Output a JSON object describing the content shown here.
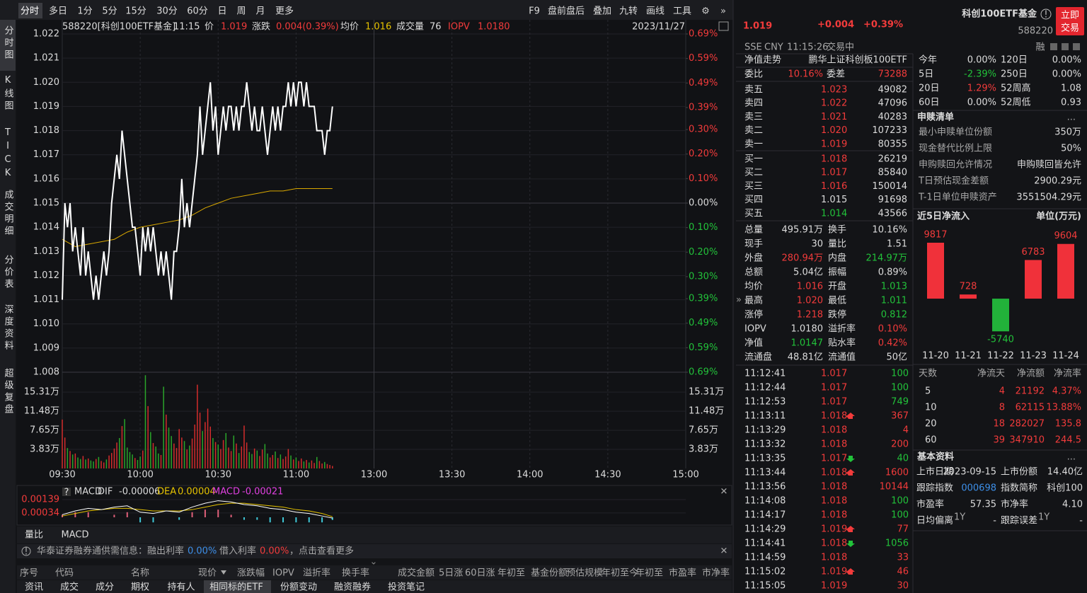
{
  "toolbar": {
    "tabs": [
      "分时",
      "多日",
      "1分",
      "5分",
      "15分",
      "30分",
      "60分",
      "日",
      "周",
      "月",
      "更多"
    ],
    "tools": [
      "F9",
      "盘前盘后",
      "叠加",
      "九转",
      "画线",
      "工具"
    ]
  },
  "side_tabs": [
    "分时图",
    "K线图",
    "TICK",
    "成交明细",
    "分价表",
    "深度资料",
    "超级复盘"
  ],
  "chart": {
    "type": "line",
    "header": [
      {
        "t": "588220[科创100ETF基金]",
        "c": "white"
      },
      {
        "t": "11:15",
        "c": "white"
      },
      {
        "t": "价",
        "c": "white"
      },
      {
        "t": "1.019",
        "c": "red"
      },
      {
        "t": "涨跌",
        "c": "white"
      },
      {
        "t": "0.004(0.39%)",
        "c": "red"
      },
      {
        "t": "均价",
        "c": "white"
      },
      {
        "t": "1.016",
        "c": "yellow"
      },
      {
        "t": "成交量",
        "c": "white"
      },
      {
        "t": "76",
        "c": "white"
      },
      {
        "t": "IOPV",
        "c": "red"
      },
      {
        "t": "1.0180",
        "c": "red"
      }
    ],
    "date": "2023/11/27",
    "xlim": [
      0,
      240
    ],
    "xticks": [
      {
        "value": 0,
        "label": "09:30"
      },
      {
        "value": 30,
        "label": "10:00"
      },
      {
        "value": 60,
        "label": "10:30"
      },
      {
        "value": 90,
        "label": "11:00"
      },
      {
        "value": 120,
        "label": "13:00"
      },
      {
        "value": 150,
        "label": "13:30"
      },
      {
        "value": 180,
        "label": "14:00"
      },
      {
        "value": 210,
        "label": "14:30"
      },
      {
        "value": 240,
        "label": "15:00"
      }
    ],
    "ylim": [
      1.008,
      1.022
    ],
    "yticks": [
      {
        "value": 1.022,
        "label": "1.022"
      },
      {
        "value": 1.021,
        "label": "1.021"
      },
      {
        "value": 1.02,
        "label": "1.020"
      },
      {
        "value": 1.019,
        "label": "1.019"
      },
      {
        "value": 1.018,
        "label": "1.018"
      },
      {
        "value": 1.017,
        "label": "1.017"
      },
      {
        "value": 1.016,
        "label": "1.016"
      },
      {
        "value": 1.015,
        "label": "1.015"
      },
      {
        "value": 1.014,
        "label": "1.014"
      },
      {
        "value": 1.013,
        "label": "1.013"
      },
      {
        "value": 1.012,
        "label": "1.012"
      },
      {
        "value": 1.011,
        "label": "1.011"
      },
      {
        "value": 1.01,
        "label": "1.010"
      },
      {
        "value": 1.009,
        "label": "1.009"
      },
      {
        "value": 1.008,
        "label": "1.008"
      }
    ],
    "y2lim": [
      -0.69,
      0.69
    ],
    "y2ticks": [
      {
        "value": 0.69,
        "label": "0.69%"
      },
      {
        "value": 0.59,
        "label": "0.59%"
      },
      {
        "value": 0.49,
        "label": "0.49%"
      },
      {
        "value": 0.39,
        "label": "0.39%"
      },
      {
        "value": 0.3,
        "label": "0.30%"
      },
      {
        "value": 0.2,
        "label": "0.20%"
      },
      {
        "value": 0.1,
        "label": "0.10%"
      },
      {
        "value": 0,
        "label": "0.00%"
      },
      {
        "value": -0.1,
        "label": "0.10%"
      },
      {
        "value": -0.2,
        "label": "0.20%"
      },
      {
        "value": -0.3,
        "label": "0.30%"
      },
      {
        "value": -0.39,
        "label": "0.39%"
      },
      {
        "value": -0.49,
        "label": "0.49%"
      },
      {
        "value": -0.59,
        "label": "0.59%"
      },
      {
        "value": -0.69,
        "label": "0.69%"
      }
    ],
    "minutes": [
      0,
      1,
      2,
      3,
      4,
      5,
      6,
      7,
      8,
      9,
      10,
      11,
      12,
      13,
      14,
      15,
      16,
      17,
      18,
      19,
      20,
      21,
      22,
      23,
      24,
      25,
      26,
      27,
      28,
      29,
      30,
      31,
      32,
      33,
      34,
      35,
      36,
      37,
      38,
      39,
      40,
      41,
      42,
      43,
      44,
      45,
      46,
      47,
      48,
      49,
      50,
      51,
      52,
      53,
      54,
      55,
      56,
      57,
      58,
      59,
      60,
      61,
      62,
      63,
      64,
      65,
      66,
      67,
      68,
      69,
      70,
      71,
      72,
      73,
      74,
      75,
      76,
      77,
      78,
      79,
      80,
      81,
      82,
      83,
      84,
      85,
      86,
      87,
      88,
      89,
      90,
      91,
      92,
      93,
      94,
      95,
      96,
      97,
      98,
      99,
      100,
      101,
      102,
      103,
      104
    ],
    "price": {
      "color": "#ffffff",
      "values": [
        1.011,
        1.015,
        1.014,
        1.015,
        1.013,
        1.014,
        1.013,
        1.012,
        1.014,
        1.012,
        1.013,
        1.012,
        1.011,
        1.012,
        1.011,
        1.012,
        1.013,
        1.012,
        1.013,
        1.015,
        1.016,
        1.017,
        1.016,
        1.018,
        1.017,
        1.016,
        1.015,
        1.014,
        1.014,
        1.013,
        1.012,
        1.014,
        1.013,
        1.014,
        1.013,
        1.014,
        1.013,
        1.012,
        1.013,
        1.012,
        1.013,
        1.012,
        1.011,
        1.013,
        1.013,
        1.014,
        1.016,
        1.014,
        1.015,
        1.014,
        1.015,
        1.016,
        1.017,
        1.019,
        1.017,
        1.018,
        1.019,
        1.02,
        1.018,
        1.019,
        1.017,
        1.018,
        1.019,
        1.018,
        1.019,
        1.019,
        1.018,
        1.019,
        1.018,
        1.019,
        1.019,
        1.02,
        1.019,
        1.018,
        1.019,
        1.018,
        1.018,
        1.019,
        1.018,
        1.017,
        1.018,
        1.019,
        1.018,
        1.019,
        1.018,
        1.019,
        1.019,
        1.02,
        1.019,
        1.02,
        1.019,
        1.02,
        1.02,
        1.019,
        1.02,
        1.019,
        1.019,
        1.019,
        1.018,
        1.018,
        1.018,
        1.017,
        1.018,
        1.018,
        1.019
      ]
    },
    "avg": {
      "color": "#d9a800",
      "x": [
        0,
        5,
        10,
        15,
        20,
        25,
        30,
        35,
        40,
        45,
        50,
        55,
        60,
        65,
        70,
        75,
        80,
        85,
        90,
        95,
        100,
        104
      ],
      "values": [
        1.0135,
        1.0132,
        1.0133,
        1.0134,
        1.0135,
        1.0138,
        1.014,
        1.0141,
        1.0142,
        1.0143,
        1.0145,
        1.0148,
        1.015,
        1.0152,
        1.0153,
        1.0154,
        1.0155,
        1.0155,
        1.0156,
        1.0156,
        1.0156,
        1.0156
      ]
    },
    "volume": {
      "type": "bar",
      "up_color": "#d42c2c",
      "down_color": "#2aa52a",
      "ylim": [
        0,
        19.3
      ],
      "yticks": [
        {
          "value": 15.31,
          "label": "15.31万"
        },
        {
          "value": 11.48,
          "label": "11.48万"
        },
        {
          "value": 7.65,
          "label": "7.65万"
        },
        {
          "value": 3.83,
          "label": "3.83万"
        }
      ],
      "values": [
        9.8,
        6.2,
        4.1,
        3.5,
        2.8,
        3.0,
        2.2,
        1.9,
        2.5,
        1.8,
        2.0,
        1.6,
        1.4,
        1.9,
        2.3,
        1.5,
        1.2,
        1.8,
        2.6,
        3.1,
        4.0,
        5.2,
        6.1,
        8.5,
        9.9,
        4.2,
        3.3,
        2.8,
        2.1,
        1.7,
        2.4,
        3.6,
        18.7,
        12.5,
        7.3,
        5.1,
        4.4,
        3.0,
        2.7,
        16.4,
        10.8,
        8.2,
        6.5,
        5.0,
        4.1,
        7.9,
        6.2,
        5.5,
        3.8,
        4.6,
        6.0,
        8.8,
        16.8,
        11.2,
        7.5,
        9.3,
        12.0,
        8.4,
        6.1,
        5.3,
        4.8,
        3.9,
        5.7,
        7.1,
        4.2,
        3.5,
        6.6,
        5.0,
        3.1,
        4.4,
        8.6,
        5.2,
        3.3,
        2.9,
        4.0,
        3.6,
        2.5,
        3.8,
        4.9,
        3.0,
        2.2,
        2.7,
        3.4,
        2.1,
        2.8,
        1.9,
        2.4,
        3.9,
        2.6,
        1.8,
        2.2,
        1.5,
        2.0,
        1.4,
        1.7,
        1.2,
        1.6,
        1.1,
        2.3,
        1.5,
        1.0,
        1.3,
        0.9,
        0.7,
        0.5
      ]
    }
  },
  "macd": {
    "type": "line",
    "header": [
      {
        "t": "MACD",
        "c": "white"
      },
      {
        "t": "DIF",
        "c": "white"
      },
      {
        "t": "-0.00006",
        "c": "white"
      },
      {
        "t": "DEA",
        "c": "yellow"
      },
      {
        "t": "0.00004",
        "c": "yellow"
      },
      {
        "t": "MACD",
        "c": "magenta"
      },
      {
        "t": "-0.00021",
        "c": "magenta"
      }
    ],
    "ylim": [
      -0.0005,
      0.00172
    ],
    "yticks": [
      0.00139,
      0.00034
    ],
    "x": [
      0,
      5,
      10,
      15,
      20,
      25,
      30,
      35,
      40,
      45,
      50,
      55,
      60,
      65,
      70,
      75,
      80,
      85,
      90,
      95,
      100,
      104
    ],
    "dif": {
      "color": "#ffffff",
      "values": [
        0.0002,
        0.0005,
        0.0007,
        0.0006,
        0.0008,
        0.0009,
        0.0004,
        0.0003,
        0.0005,
        0.0004,
        0.0008,
        0.0011,
        0.0013,
        0.0012,
        0.001,
        0.0009,
        0.0007,
        0.0006,
        0.0004,
        0.0003,
        0.0001,
        -6e-05
      ]
    },
    "dea": {
      "color": "#e5c200",
      "values": [
        0.0001,
        0.0003,
        0.0005,
        0.0006,
        0.0007,
        0.0007,
        0.0006,
        0.0005,
        0.0005,
        0.0005,
        0.0006,
        0.0008,
        0.001,
        0.0011,
        0.0011,
        0.001,
        0.0009,
        0.0008,
        0.0006,
        0.0005,
        0.0003,
        4e-05
      ]
    },
    "bars": {
      "up_color": "#e0607a",
      "down_color": "#3fc8d8",
      "values": [
        0.0002,
        0.0004,
        0.0004,
        0,
        0.0002,
        0.0004,
        -0.0004,
        -0.0004,
        0,
        -0.0002,
        0.0004,
        0.0006,
        0.0006,
        0.0002,
        -0.0002,
        -0.0002,
        -0.0004,
        -0.0004,
        -0.0004,
        -0.0004,
        -0.0004,
        -0.00021
      ]
    }
  },
  "indicator_tabs": [
    "量比",
    "MACD"
  ],
  "notice": [
    {
      "t": "华泰证券融券通供需信息：融出利率",
      "c": "gray"
    },
    {
      "t": "0.00%",
      "c": "blue"
    },
    {
      "t": "借入利率",
      "c": "gray"
    },
    {
      "t": "0.00%",
      "c": "red"
    },
    {
      "t": "，点击查看更多",
      "c": "gray"
    }
  ],
  "table_header": [
    "序号",
    "代码",
    "名称",
    "现价",
    "涨跌幅",
    "IOPV",
    "溢折率",
    "换手率",
    "成交金额",
    "5日涨",
    "60日涨",
    "年初至",
    "基金份额",
    "预估规模",
    "年初至今",
    "年初至",
    "市盈率",
    "市净率"
  ],
  "bottom_tabs": [
    "资讯",
    "成交",
    "成分",
    "期权",
    "持有人",
    "相同标的ETF",
    "份额变动",
    "融资融券",
    "投资笔记"
  ],
  "quote": {
    "price": "1.019",
    "change": "+0.004",
    "pct": "+0.39%",
    "exchange": "SSE",
    "currency": "CNY",
    "time": "11:15:26",
    "status": "交易中",
    "nav_tab": "净值走势",
    "fund_full": "鹏华上证科创板100ETF",
    "wb_label": "委比",
    "wb": "10.16%",
    "wc_label": "委差",
    "wc": "73288"
  },
  "book": [
    {
      "label": "卖五",
      "price": "1.023",
      "vol": "49082",
      "c": "red"
    },
    {
      "label": "卖四",
      "price": "1.022",
      "vol": "47096",
      "c": "red"
    },
    {
      "label": "卖三",
      "price": "1.021",
      "vol": "40283",
      "c": "red"
    },
    {
      "label": "卖二",
      "price": "1.020",
      "vol": "107233",
      "c": "red"
    },
    {
      "label": "卖一",
      "price": "1.019",
      "vol": "80355",
      "c": "red"
    },
    {
      "label": "买一",
      "price": "1.018",
      "vol": "26219",
      "c": "red"
    },
    {
      "label": "买二",
      "price": "1.017",
      "vol": "85840",
      "c": "red"
    },
    {
      "label": "买三",
      "price": "1.016",
      "vol": "150014",
      "c": "red"
    },
    {
      "label": "买四",
      "price": "1.015",
      "vol": "91698",
      "c": "white"
    },
    {
      "label": "买五",
      "price": "1.014",
      "vol": "43566",
      "c": "green"
    }
  ],
  "stats": [
    {
      "l1": "总量",
      "v1": "495.91万",
      "c1": "white",
      "l2": "换手",
      "v2": "10.16%",
      "c2": "white"
    },
    {
      "l1": "现手",
      "v1": "30",
      "c1": "white",
      "l2": "量比",
      "v2": "1.51",
      "c2": "white"
    },
    {
      "l1": "外盘",
      "v1": "280.94万",
      "c1": "red",
      "l2": "内盘",
      "v2": "214.97万",
      "c2": "green"
    },
    {
      "l1": "总额",
      "v1": "5.04亿",
      "c1": "white",
      "l2": "振幅",
      "v2": "0.89%",
      "c2": "white"
    },
    {
      "l1": "均价",
      "v1": "1.016",
      "c1": "red",
      "l2": "开盘",
      "v2": "1.013",
      "c2": "green"
    },
    {
      "l1": "最高",
      "v1": "1.020",
      "c1": "red",
      "l2": "最低",
      "v2": "1.011",
      "c2": "green"
    },
    {
      "l1": "涨停",
      "v1": "1.218",
      "c1": "red",
      "l2": "跌停",
      "v2": "0.812",
      "c2": "green"
    },
    {
      "l1": "IOPV",
      "v1": "1.0180",
      "c1": "white",
      "l2": "溢折率",
      "v2": "0.10%",
      "c2": "red"
    },
    {
      "l1": "净值",
      "v1": "1.0147",
      "c1": "green",
      "l2": "贴水率",
      "v2": "0.42%",
      "c2": "red"
    },
    {
      "l1": "流通盘",
      "v1": "48.81亿",
      "c1": "white",
      "l2": "流通值",
      "v2": "50亿",
      "c2": "white"
    }
  ],
  "trades": [
    {
      "time": "11:12:41",
      "price": "1.017",
      "vol": "100",
      "vc": "green"
    },
    {
      "time": "11:12:44",
      "price": "1.017",
      "vol": "100",
      "vc": "green"
    },
    {
      "time": "11:12:53",
      "price": "1.017",
      "vol": "749",
      "vc": "green"
    },
    {
      "time": "11:13:11",
      "price": "1.018",
      "arrow": "up",
      "vol": "367",
      "vc": "red"
    },
    {
      "time": "11:13:29",
      "price": "1.018",
      "vol": "4",
      "vc": "red"
    },
    {
      "time": "11:13:32",
      "price": "1.018",
      "vol": "200",
      "vc": "red"
    },
    {
      "time": "11:13:35",
      "price": "1.017",
      "arrow": "down",
      "vol": "40",
      "vc": "green"
    },
    {
      "time": "11:13:44",
      "price": "1.018",
      "arrow": "up",
      "vol": "1600",
      "vc": "red"
    },
    {
      "time": "11:13:56",
      "price": "1.018",
      "vol": "10144",
      "vc": "red"
    },
    {
      "time": "11:14:08",
      "price": "1.018",
      "vol": "100",
      "vc": "green"
    },
    {
      "time": "11:14:17",
      "price": "1.018",
      "vol": "100",
      "vc": "green"
    },
    {
      "time": "11:14:29",
      "price": "1.019",
      "arrow": "up",
      "vol": "77",
      "vc": "red"
    },
    {
      "time": "11:14:41",
      "price": "1.018",
      "arrow": "down",
      "vol": "1056",
      "vc": "green"
    },
    {
      "time": "11:14:59",
      "price": "1.018",
      "vol": "33",
      "vc": "red"
    },
    {
      "time": "11:15:02",
      "price": "1.019",
      "arrow": "up",
      "vol": "46",
      "vc": "red"
    },
    {
      "time": "11:15:05",
      "price": "1.019",
      "vol": "30",
      "vc": "red"
    }
  ],
  "info": {
    "name": "科创100ETF基金",
    "code": "588220",
    "button": [
      "立即",
      "交易"
    ],
    "tag": "融"
  },
  "perf": [
    {
      "l1": "今年",
      "v1": "0.00%",
      "c1": "white",
      "l2": "120日",
      "v2": "0.00%",
      "c2": "white"
    },
    {
      "l1": "5日",
      "v1": "-2.39%",
      "c1": "green",
      "l2": "250日",
      "v2": "0.00%",
      "c2": "white"
    },
    {
      "l1": "20日",
      "v1": "1.29%",
      "c1": "red",
      "l2": "52周高",
      "v2": "1.08",
      "c2": "white"
    },
    {
      "l1": "60日",
      "v1": "0.00%",
      "c1": "white",
      "l2": "52周低",
      "v2": "0.93",
      "c2": "white"
    }
  ],
  "creation": {
    "title": "申赎清单",
    "more": "...",
    "rows": [
      [
        "最小申赎单位份额",
        "350万"
      ],
      [
        "现金替代比例上限",
        "50%"
      ],
      [
        "申购赎回允许情况",
        "申购赎回皆允许"
      ],
      [
        "T日预估现金差额",
        "2900.29元"
      ],
      [
        "T-1日单位申赎资产",
        "3551504.29元"
      ]
    ]
  },
  "flow": {
    "type": "bar",
    "title": "近5日净流入",
    "unit": "单位(万元)",
    "up_color": "#f0313a",
    "down_color": "#22b23a",
    "categories": [
      "11-20",
      "11-21",
      "11-22",
      "11-23",
      "11-24"
    ],
    "values": [
      9817,
      728,
      -5740,
      6783,
      9604
    ],
    "ylim": [
      -5960,
      10190
    ]
  },
  "flow_table": {
    "header": [
      "天数",
      "净流天",
      "净流额",
      "净流率"
    ],
    "rows": [
      [
        "5",
        "4",
        "21192",
        "4.37%"
      ],
      [
        "10",
        "8",
        "62115",
        "13.88%"
      ],
      [
        "20",
        "18",
        "282027",
        "135.8"
      ],
      [
        "60",
        "39",
        "347910",
        "244.5"
      ]
    ]
  },
  "basic": {
    "title": "基本资料",
    "more": "...",
    "rows": [
      {
        "l1": "上市日期",
        "v1": "2023-09-15",
        "c1": "white",
        "l2": "上市份额",
        "v2": "14.40亿",
        "c2": "white"
      },
      {
        "l1": "跟踪指数",
        "v1": "000698",
        "c1": "blue",
        "l2": "指数简称",
        "v2": "科创100",
        "c2": "white"
      },
      {
        "l1": "市盈率",
        "v1": "57.35",
        "c1": "white",
        "l2": "市净率",
        "v2": "4.10",
        "c2": "white"
      },
      {
        "l1": "日均偏离",
        "s1": "1Y",
        "v1": "-",
        "c1": "white",
        "l2": "跟踪误差",
        "s2": "1Y",
        "v2": "-",
        "c2": "white"
      }
    ]
  }
}
